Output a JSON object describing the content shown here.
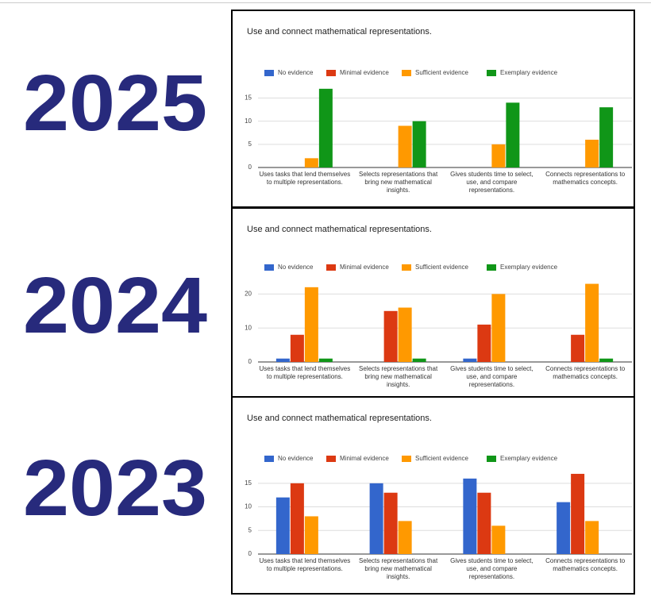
{
  "chart_data": [
    {
      "type": "bar",
      "year_label": "2025",
      "title": "Use and connect mathematical representations.",
      "categories": [
        "Uses tasks that lend themselves to multiple representations.",
        "Selects representations that bring new mathematical insights.",
        "Gives students time to select, use, and compare representations.",
        "Connects representations to mathematics concepts."
      ],
      "series": [
        {
          "name": "No evidence",
          "color": "#3366cc",
          "values": [
            0,
            0,
            0,
            0
          ]
        },
        {
          "name": "Minimal evidence",
          "color": "#dc3912",
          "values": [
            0,
            0,
            0,
            0
          ]
        },
        {
          "name": "Sufficient evidence",
          "color": "#ff9900",
          "values": [
            2,
            9,
            5,
            6
          ]
        },
        {
          "name": "Exemplary evidence",
          "color": "#109618",
          "values": [
            17,
            10,
            14,
            13
          ]
        }
      ],
      "ylim": [
        0,
        18
      ],
      "yticks": [
        0,
        5,
        10,
        15
      ],
      "grid": true
    },
    {
      "type": "bar",
      "year_label": "2024",
      "title": "Use and connect mathematical representations.",
      "categories": [
        "Uses tasks that lend themselves to multiple representations.",
        "Selects representations that bring new mathematical insights.",
        "Gives students time to select, use, and compare representations.",
        "Connects representations to mathematics concepts."
      ],
      "series": [
        {
          "name": "No evidence",
          "color": "#3366cc",
          "values": [
            1,
            0,
            1,
            0
          ]
        },
        {
          "name": "Minimal evidence",
          "color": "#dc3912",
          "values": [
            8,
            15,
            11,
            8
          ]
        },
        {
          "name": "Sufficient evidence",
          "color": "#ff9900",
          "values": [
            22,
            16,
            20,
            23
          ]
        },
        {
          "name": "Exemplary evidence",
          "color": "#109618",
          "values": [
            1,
            1,
            0,
            1
          ]
        }
      ],
      "ylim": [
        0,
        25
      ],
      "yticks": [
        0,
        10,
        20
      ],
      "grid": true
    },
    {
      "type": "bar",
      "year_label": "2023",
      "title": "Use and connect mathematical representations.",
      "categories": [
        "Uses tasks that lend themselves to multiple representations.",
        "Selects representations that bring new mathematical insights.",
        "Gives students time to select, use, and compare representations.",
        "Connects representations to mathematics concepts."
      ],
      "series": [
        {
          "name": "No evidence",
          "color": "#3366cc",
          "values": [
            12,
            15,
            16,
            11
          ]
        },
        {
          "name": "Minimal evidence",
          "color": "#dc3912",
          "values": [
            15,
            13,
            13,
            17
          ]
        },
        {
          "name": "Sufficient evidence",
          "color": "#ff9900",
          "values": [
            8,
            7,
            6,
            7
          ]
        },
        {
          "name": "Exemplary evidence",
          "color": "#109618",
          "values": [
            0,
            0,
            0,
            0
          ]
        }
      ],
      "ylim": [
        0,
        18
      ],
      "yticks": [
        0,
        5,
        10,
        15
      ],
      "grid": true
    }
  ]
}
